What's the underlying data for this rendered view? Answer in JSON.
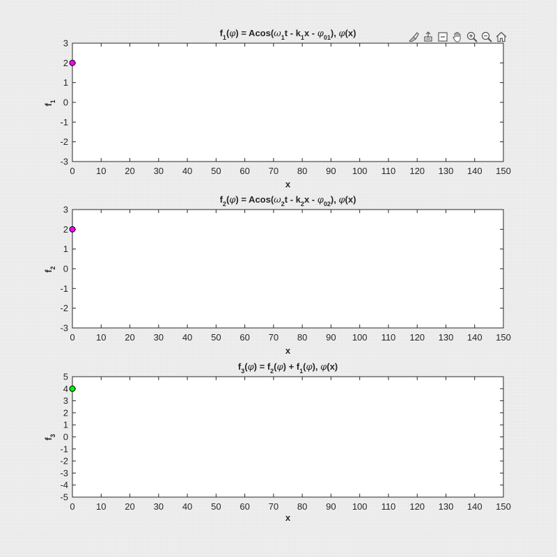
{
  "toolbar": {
    "icons": [
      "brush-data-icon",
      "export-icon",
      "datatip-icon",
      "pan-icon",
      "zoom-in-icon",
      "zoom-out-icon",
      "home-icon"
    ]
  },
  "colors": {
    "axis": "#262626",
    "plot_bg": "#ffffff",
    "marker_f1": "#ff00ff",
    "marker_f2": "#ff00ff",
    "marker_f3": "#00ff00"
  },
  "chart_data": [
    {
      "type": "scatter",
      "title": "f1(φ) = Acos(ω1t - k1x - φ01), φ(x)",
      "xlabel": "x",
      "ylabel": "f1",
      "xlim": [
        0,
        150
      ],
      "ylim": [
        -3,
        3
      ],
      "xticks": [
        "0",
        "10",
        "20",
        "30",
        "40",
        "50",
        "60",
        "70",
        "80",
        "90",
        "100",
        "110",
        "120",
        "130",
        "140",
        "150"
      ],
      "yticks": [
        "3",
        "2",
        "1",
        "0",
        "-1",
        "-2",
        "-3"
      ],
      "points": [
        {
          "x": 0,
          "y": 2
        }
      ],
      "marker_color": "#ff00ff"
    },
    {
      "type": "scatter",
      "title": "f2(φ) = Acos(ω2t - k2x - φ02), φ(x)",
      "xlabel": "x",
      "ylabel": "f2",
      "xlim": [
        0,
        150
      ],
      "ylim": [
        -3,
        3
      ],
      "xticks": [
        "0",
        "10",
        "20",
        "30",
        "40",
        "50",
        "60",
        "70",
        "80",
        "90",
        "100",
        "110",
        "120",
        "130",
        "140",
        "150"
      ],
      "yticks": [
        "3",
        "2",
        "1",
        "0",
        "-1",
        "-2",
        "-3"
      ],
      "points": [
        {
          "x": 0,
          "y": 2
        }
      ],
      "marker_color": "#ff00ff"
    },
    {
      "type": "scatter",
      "title": "f3(φ) = f2(φ) + f1(φ), φ(x)",
      "xlabel": "x",
      "ylabel": "f3",
      "xlim": [
        0,
        150
      ],
      "ylim": [
        -5,
        5
      ],
      "xticks": [
        "0",
        "10",
        "20",
        "30",
        "40",
        "50",
        "60",
        "70",
        "80",
        "90",
        "100",
        "110",
        "120",
        "130",
        "140",
        "150"
      ],
      "yticks": [
        "5",
        "4",
        "3",
        "2",
        "1",
        "0",
        "-1",
        "-2",
        "-3",
        "-4",
        "-5"
      ],
      "points": [
        {
          "x": 0,
          "y": 4
        }
      ],
      "marker_color": "#00ff00"
    }
  ]
}
